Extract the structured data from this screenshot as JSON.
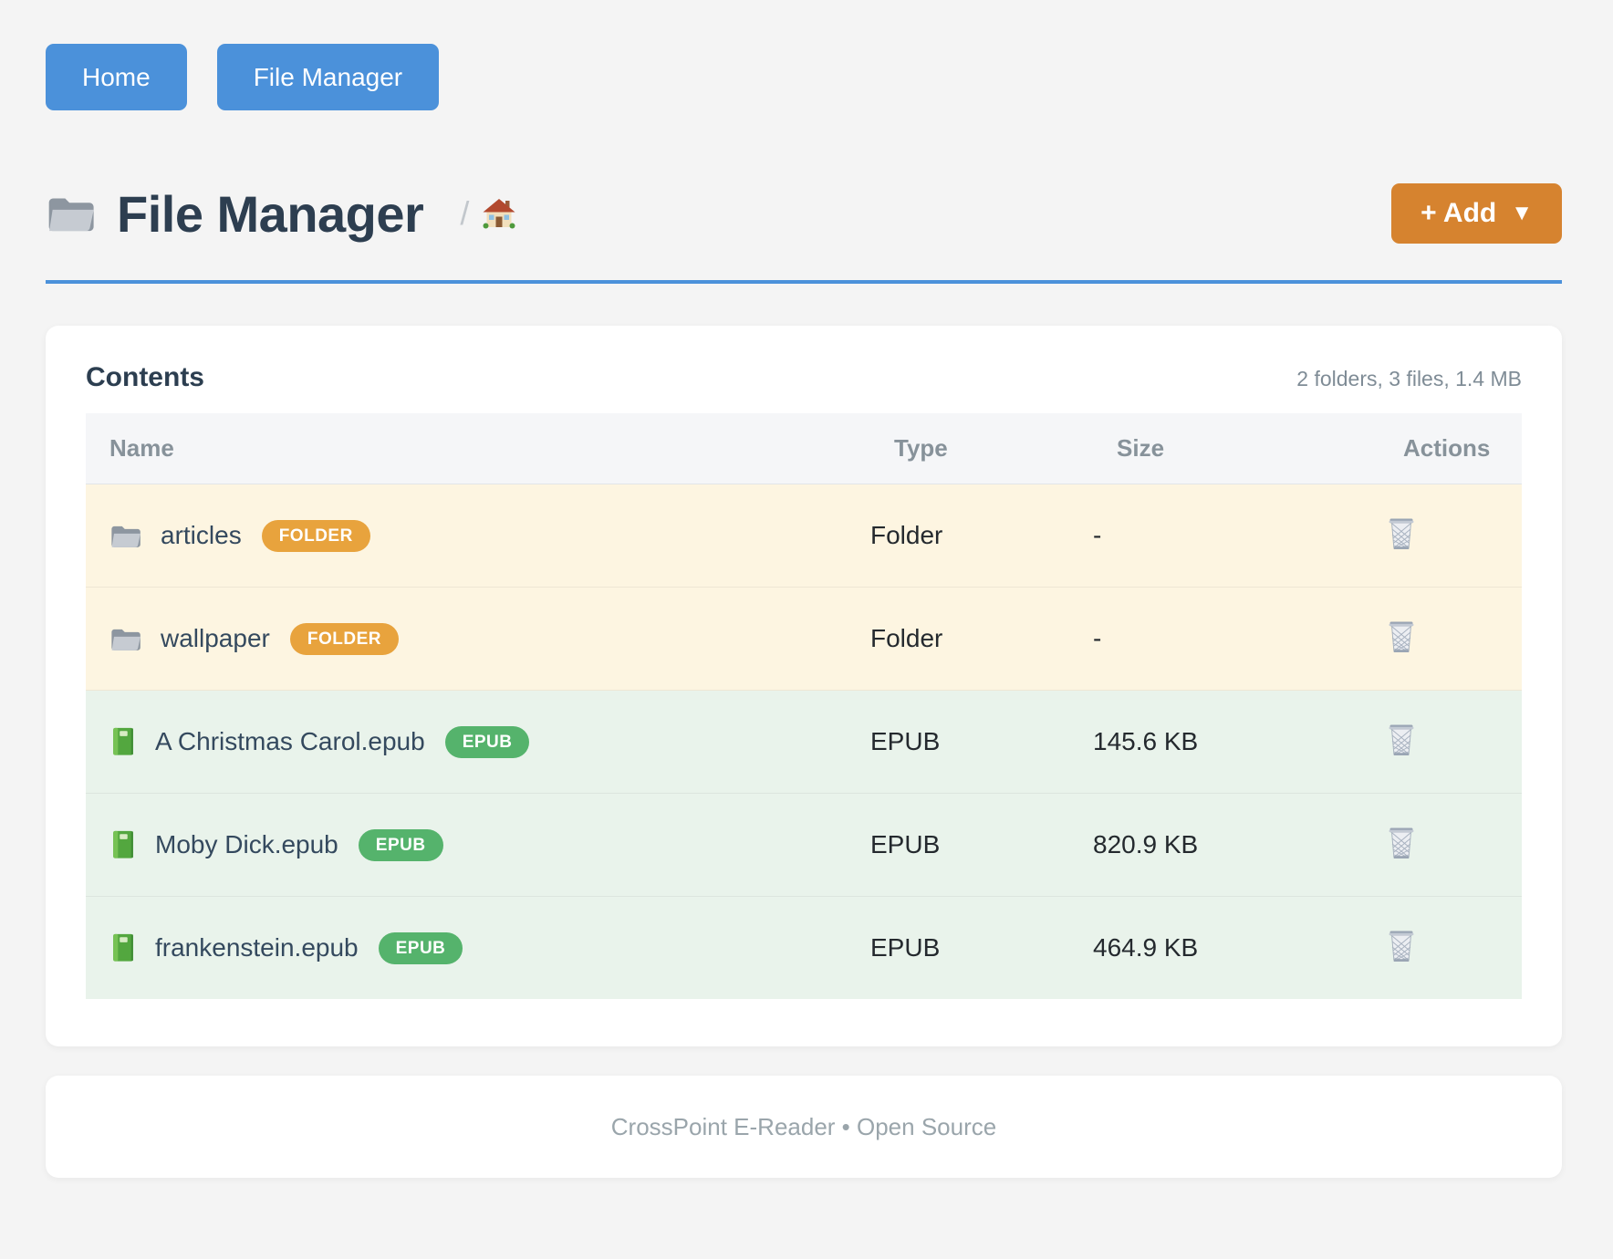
{
  "nav": {
    "buttons": [
      {
        "label": "Home"
      },
      {
        "label": "File Manager"
      }
    ]
  },
  "header": {
    "title": "File Manager",
    "title_icon": "folder-icon",
    "breadcrumb": {
      "separator": "/",
      "home_icon": "house-icon"
    },
    "add_button": {
      "label": "+ Add",
      "arrow": "▼"
    }
  },
  "content_card": {
    "heading": "Contents",
    "summary": "2 folders, 3 files, 1.4 MB",
    "table": {
      "columns": [
        "Name",
        "Type",
        "Size",
        "Actions"
      ],
      "action_icon": "trash-icon",
      "rows": [
        {
          "icon": "folder-icon",
          "name": "articles",
          "badge": "FOLDER",
          "type": "Folder",
          "size": "-",
          "kind": "folder"
        },
        {
          "icon": "folder-icon",
          "name": "wallpaper",
          "badge": "FOLDER",
          "type": "Folder",
          "size": "-",
          "kind": "folder"
        },
        {
          "icon": "book-icon",
          "name": "A Christmas Carol.epub",
          "badge": "EPUB",
          "type": "EPUB",
          "size": "145.6 KB",
          "kind": "epub"
        },
        {
          "icon": "book-icon",
          "name": "Moby Dick.epub",
          "badge": "EPUB",
          "type": "EPUB",
          "size": "820.9 KB",
          "kind": "epub"
        },
        {
          "icon": "book-icon",
          "name": "frankenstein.epub",
          "badge": "EPUB",
          "type": "EPUB",
          "size": "464.9 KB",
          "kind": "epub"
        }
      ]
    }
  },
  "footer": {
    "text": "CrossPoint E-Reader • Open Source"
  },
  "colors": {
    "primary_blue": "#4b91da",
    "add_orange": "#d6832f",
    "folder_badge": "#e8a33d",
    "epub_badge": "#55b36c",
    "folder_row_bg": "#fdf5e1",
    "epub_row_bg": "#e9f3eb",
    "heading_dark": "#2c3e50"
  }
}
